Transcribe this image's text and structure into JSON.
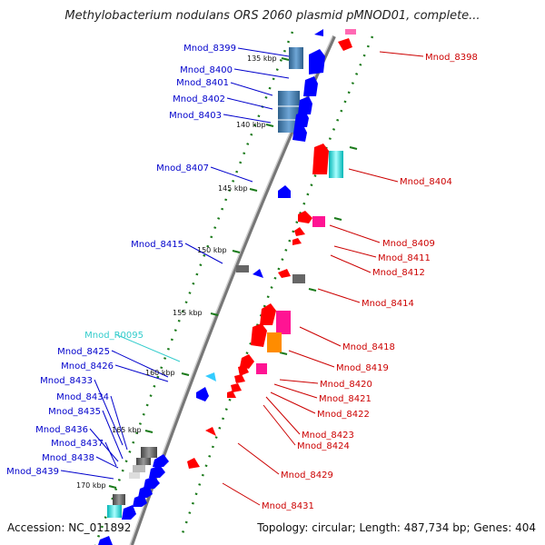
{
  "title": "Methylobacterium nodulans ORS 2060 plasmid pMNOD01, complete...",
  "footer": {
    "accession": "Accession: NC_011892",
    "summary": "Topology: circular; Length: 487,734 bp; Genes: 404"
  },
  "colors": {
    "backbone": "#888888",
    "tick": "#1a7a1a",
    "left_label": "#0000cc",
    "right_label": "#cc0000",
    "rna_label": "#33cccc",
    "gene_blue": "#0000ff",
    "gene_red": "#ff0000",
    "gene_pink": "#ff1493",
    "gene_cyan": "#00ffff",
    "gene_steel": "#4682b4",
    "gene_gray": "#555555",
    "gene_orange": "#ff8c00"
  },
  "scale_labels": [
    "135 kbp",
    "140 kbp",
    "145 kbp",
    "150 kbp",
    "155 kbp",
    "160 kbp",
    "165 kbp",
    "170 kbp"
  ],
  "left_labels": [
    "Mnod_8399",
    "Mnod_8400",
    "Mnod_8401",
    "Mnod_8402",
    "Mnod_8403",
    "Mnod_8407",
    "Mnod_8415",
    "Mnod_R0095",
    "Mnod_8425",
    "Mnod_8426",
    "Mnod_8433",
    "Mnod_8434",
    "Mnod_8435",
    "Mnod_8436",
    "Mnod_8437",
    "Mnod_8438",
    "Mnod_8439"
  ],
  "right_labels": [
    "Mnod_8398",
    "Mnod_8404",
    "Mnod_8409",
    "Mnod_8411",
    "Mnod_8412",
    "Mnod_8414",
    "Mnod_8418",
    "Mnod_8419",
    "Mnod_8420",
    "Mnod_8421",
    "Mnod_8422",
    "Mnod_8423",
    "Mnod_8424",
    "Mnod_8429",
    "Mnod_8431"
  ]
}
